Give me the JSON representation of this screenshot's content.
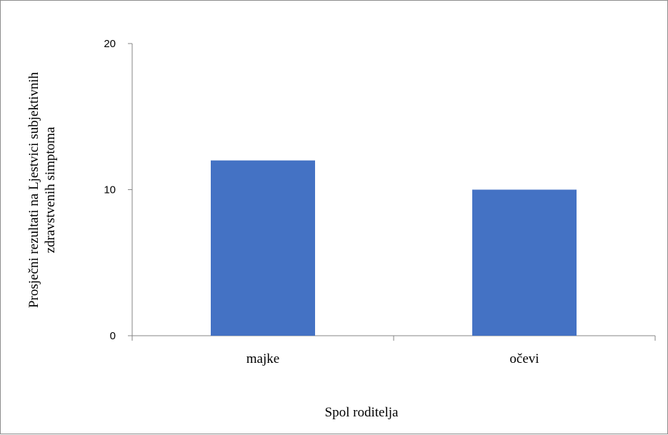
{
  "chart_data": {
    "type": "bar",
    "categories": [
      "majke",
      "očevi"
    ],
    "values": [
      12,
      10
    ],
    "title": "",
    "xlabel": "Spol roditelja",
    "ylabel": [
      "Prosječni rezultati na Ljestvici subjektivnih",
      "zdravstvenih simptoma"
    ],
    "ylim": [
      0,
      20
    ],
    "yticks": [
      "0",
      "10",
      "20"
    ],
    "grid": false,
    "legend": "none",
    "bar_color": "#4472c4",
    "axis_color": "#868686"
  }
}
